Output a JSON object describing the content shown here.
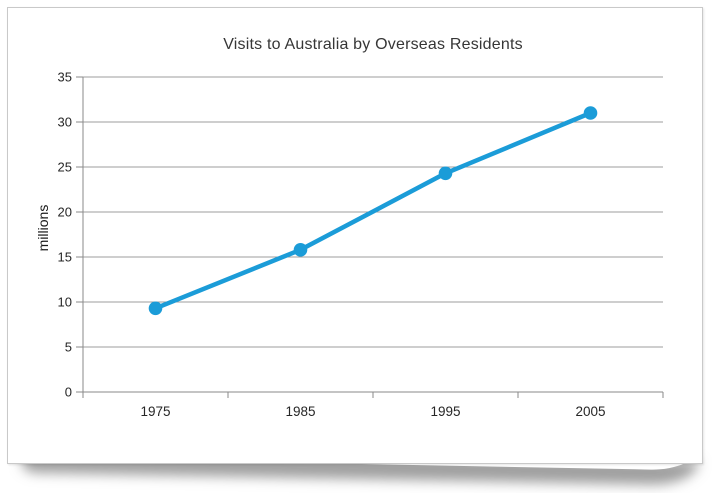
{
  "chart_data": {
    "type": "line",
    "title": "Visits to Australia by Overseas Residents",
    "xlabel": "",
    "ylabel": "millions",
    "categories": [
      "1975",
      "1985",
      "1995",
      "2005"
    ],
    "series": [
      {
        "name": "Visits to Australia",
        "values": [
          9.3,
          15.8,
          24.3,
          31.0
        ]
      }
    ],
    "ylim": [
      0,
      35
    ],
    "ytick_step": 5,
    "grid": true,
    "legend": "none",
    "marker": "circle"
  },
  "colors": {
    "line": "#1B9CD8",
    "grid": "#9c9c9c",
    "axis": "#8a8a8a",
    "tick_text": "#262626",
    "title_text": "#363636",
    "card_border": "#c9c9c9"
  }
}
